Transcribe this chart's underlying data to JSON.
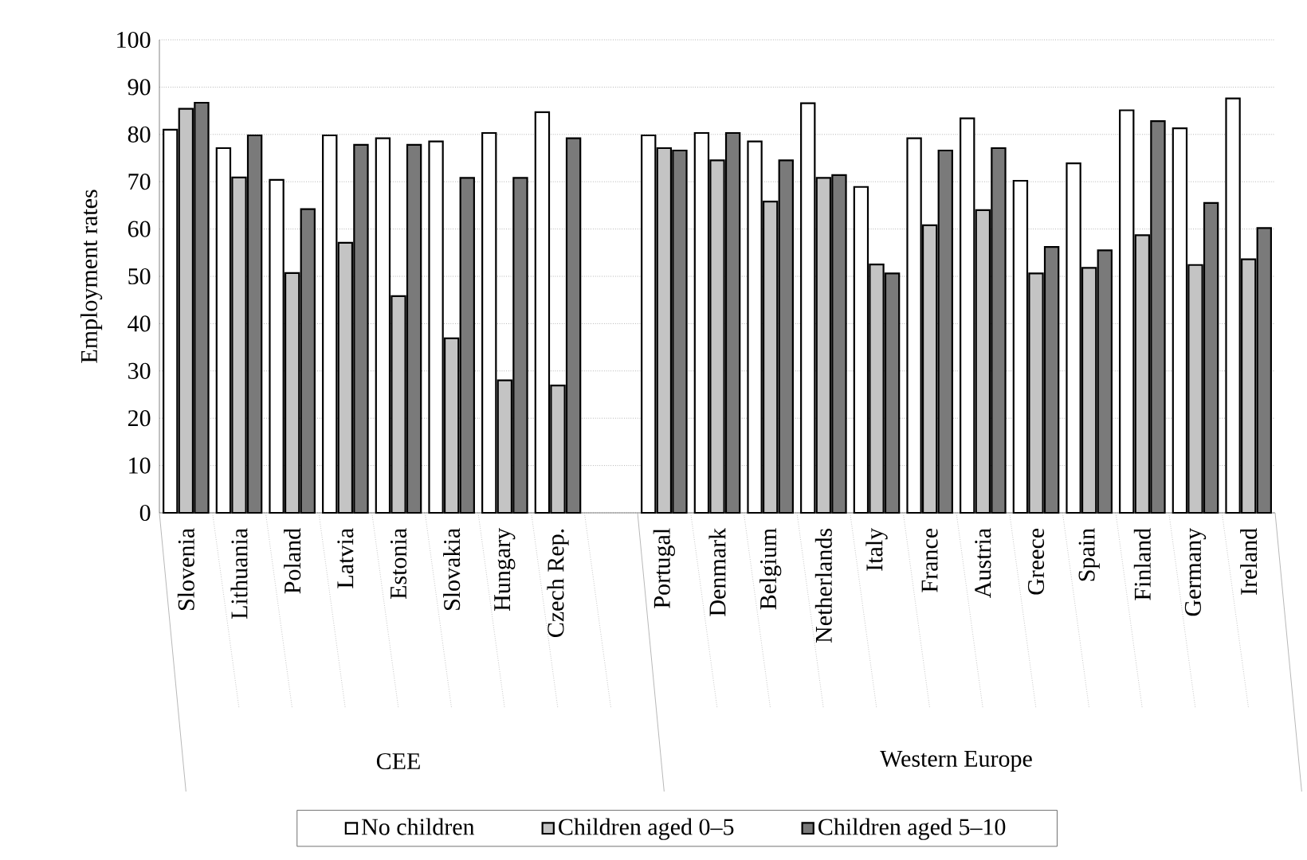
{
  "chart_data": {
    "type": "bar",
    "ylabel": "Employment rates",
    "categories": [
      "Slovenia",
      "Lithuania",
      "Poland",
      "Latvia",
      "Estonia",
      "Slovakia",
      "Hungary",
      "Czech Rep.",
      null,
      "Portugal",
      "Denmark",
      "Belgium",
      "Netherlands",
      "Italy",
      "France",
      "Austria",
      "Greece",
      "Spain",
      "Finland",
      "Germany",
      "Ireland"
    ],
    "series": [
      {
        "name": "No children",
        "color": "#ffffff",
        "values": [
          81,
          77.1,
          70.4,
          79.8,
          79.2,
          78.5,
          80.3,
          84.7,
          null,
          79.8,
          80.3,
          78.5,
          86.6,
          68.9,
          79.2,
          83.4,
          70.2,
          73.9,
          85.1,
          81.3,
          87.6
        ]
      },
      {
        "name": "Children aged 0–5",
        "color": "#c4c4c4",
        "values": [
          85.4,
          70.9,
          50.7,
          57.1,
          45.8,
          36.9,
          28,
          26.9,
          null,
          77.1,
          74.5,
          65.8,
          70.8,
          52.5,
          60.8,
          64,
          50.6,
          51.8,
          58.7,
          52.4,
          53.6
        ]
      },
      {
        "name": "Children aged 5–10",
        "color": "#7a7a7a",
        "values": [
          86.7,
          79.8,
          64.2,
          77.8,
          77.8,
          70.8,
          70.8,
          79.2,
          null,
          76.6,
          80.3,
          74.5,
          71.4,
          50.6,
          76.6,
          77.1,
          56.2,
          55.5,
          82.8,
          65.5,
          60.2
        ]
      }
    ],
    "ylim": [
      0,
      100
    ],
    "yticks": [
      0,
      10,
      20,
      30,
      40,
      50,
      60,
      70,
      80,
      90,
      100
    ],
    "grid": "y",
    "legend": "bottom",
    "annotations": [
      "CEE",
      "Western Europe"
    ]
  }
}
